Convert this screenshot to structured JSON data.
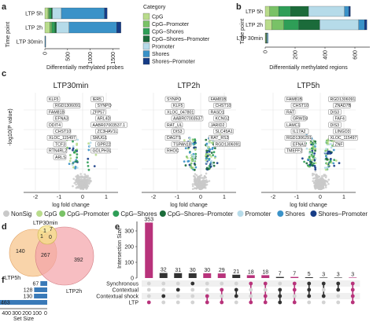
{
  "panels": {
    "a": "a",
    "b": "b",
    "c": "c",
    "d": "d",
    "e": "e",
    "f": "f"
  },
  "colors": {
    "NonSig": "#c9c9c9",
    "CpG": "#b9dc8c",
    "CpG-Promoter": "#79c267",
    "CpG-Shores": "#2e9e57",
    "CpG-Shores-Promoter": "#1b6b3a",
    "Promoter": "#b6dbe9",
    "Shores": "#3a92c8",
    "Shores-Promoter": "#163c86",
    "LTP30min": "#f6e28a",
    "LTP2h": "#f4a3a8",
    "LTP5h": "#f7c68e",
    "upset": "#b8337b"
  },
  "chart_data": [
    {
      "panel": "a",
      "type": "bar",
      "stacked": true,
      "orientation": "horizontal",
      "categories": [
        "LTP 5h",
        "LTP 2h",
        "LTP 30min"
      ],
      "ylabel": "Time point",
      "xlabel": "Differentially methylated probes",
      "xticks": [
        0,
        500,
        1000,
        1500
      ],
      "xlim": [
        0,
        1650
      ],
      "series": [
        {
          "name": "CpG",
          "values": [
            70,
            110,
            1
          ]
        },
        {
          "name": "CpG-Promoter",
          "values": [
            30,
            45,
            1
          ]
        },
        {
          "name": "CpG-Shores",
          "values": [
            45,
            70,
            1
          ]
        },
        {
          "name": "CpG-Shores-Promoter",
          "values": [
            20,
            30,
            0
          ]
        },
        {
          "name": "Promoter",
          "values": [
            200,
            280,
            1
          ]
        },
        {
          "name": "Shores",
          "values": [
            950,
            1050,
            3
          ]
        },
        {
          "name": "Shores-Promoter",
          "values": [
            60,
            95,
            0
          ]
        }
      ]
    },
    {
      "panel": "b",
      "type": "bar",
      "stacked": true,
      "orientation": "horizontal",
      "categories": [
        "LTP 5h",
        "LTP 2h",
        "LTP 30min"
      ],
      "ylabel": "Time point",
      "xlabel": "Differentially methylated regions",
      "xticks": [
        0,
        200,
        400,
        600
      ],
      "xlim": [
        0,
        700
      ],
      "series": [
        {
          "name": "CpG",
          "values": [
            30,
            45,
            3
          ]
        },
        {
          "name": "CpG-Promoter",
          "values": [
            60,
            80,
            2
          ]
        },
        {
          "name": "CpG-Shores",
          "values": [
            80,
            100,
            3
          ]
        },
        {
          "name": "CpG-Shores-Promoter",
          "values": [
            120,
            140,
            2
          ]
        },
        {
          "name": "Promoter",
          "values": [
            240,
            260,
            5
          ]
        },
        {
          "name": "Shores",
          "values": [
            30,
            40,
            1
          ]
        },
        {
          "name": "Shores-Promoter",
          "values": [
            10,
            15,
            0
          ]
        }
      ]
    },
    {
      "panel": "c",
      "type": "scatter",
      "xlabel": "log fold change",
      "ylabel": "-log10(P value)",
      "xticks": [
        -2,
        -1,
        0,
        1
      ],
      "xlim": [
        -2.5,
        1.5
      ],
      "facets": [
        {
          "title": "LTP30min",
          "labels": [
            "KLF5",
            "IER5",
            "RGD1306091",
            "SYNPO",
            "FAM81B",
            "ZFP57",
            "EFNA3",
            "ARL4D",
            "DDIT4",
            "AABR07003537.1",
            "CHST10",
            "ZC3HAV1L",
            "XLOC_115497",
            "SMUG1",
            "TCF3",
            "GPR22",
            "RTN4RL2",
            "GOLPH3L",
            "ARLS"
          ]
        },
        {
          "title": "LTP2h",
          "labels": [
            "SYNPO",
            "FAM81B",
            "KLF5",
            "CHST10",
            "XLOC_047801",
            "RASD1",
            "AABR07003537",
            "KCNG2",
            "RAT_UL",
            "JARID2",
            "DIS3",
            "SLC45A1",
            "DAGTS",
            "RAT_RS3",
            "TSPAN18",
            "RGD1306091",
            "RHOC"
          ]
        },
        {
          "title": "LTP5h",
          "labels": [
            "FAM81B",
            "RGD1306091",
            "CHST10",
            "ZNAD7B",
            "RAT",
            "DIS3",
            "GRWD3",
            "FAF4",
            "LAMC1",
            "DIS3",
            "IL17A2",
            "LINGO3",
            "RGD1306291",
            "XLOC_115497",
            "EFNA1",
            "ZNF",
            "TMEFF2"
          ]
        }
      ]
    },
    {
      "panel": "d",
      "type": "venn",
      "sets": [
        "LTP30min",
        "LTP5h",
        "LTP2h"
      ],
      "regions": {
        "LTP30min_only": 1,
        "LTP30min_LTP5h": 1,
        "LTP30min_LTP2h": 7,
        "all": 0,
        "LTP5h_only": 140,
        "LTP5h_LTP2h": 267,
        "LTP2h_only": 392
      }
    },
    {
      "panel": "e",
      "type": "bar",
      "ylabel": "Intersection Size",
      "yticks": [
        0,
        100,
        200,
        300
      ],
      "ylim": [
        0,
        360
      ],
      "sets": [
        "Synchronous",
        "Contextual",
        "Contextual shock",
        "LTP"
      ],
      "values": [
        353,
        32,
        31,
        30,
        30,
        29,
        21,
        18,
        18,
        7,
        7,
        5,
        3,
        3,
        3
      ],
      "highlight": [
        true,
        false,
        false,
        false,
        true,
        true,
        false,
        true,
        true,
        false,
        true,
        false,
        false,
        false,
        true
      ],
      "membership": [
        [
          3
        ],
        [
          2
        ],
        [
          1
        ],
        [
          0
        ],
        [
          2,
          3
        ],
        [
          1,
          3
        ],
        [
          1,
          2
        ],
        [
          0,
          3
        ],
        [
          0,
          2,
          3
        ],
        [
          1,
          2,
          3
        ],
        [
          0,
          1,
          3
        ],
        [
          0,
          1,
          2
        ],
        [
          0,
          2
        ],
        [
          0,
          1
        ],
        [
          0,
          1,
          2,
          3
        ]
      ]
    },
    {
      "panel": "f",
      "type": "bar",
      "orientation": "horizontal",
      "xlabel": "Set Size",
      "xticks": [
        400,
        300,
        200,
        100,
        0
      ],
      "categories": [
        "Synchronous",
        "Contextual",
        "Contextual shock",
        "LTP"
      ],
      "values": [
        67,
        128,
        130,
        463
      ]
    }
  ],
  "legend": {
    "title": "Category",
    "items": [
      "CpG",
      "CpG–Promoter",
      "CpG–Shores",
      "CpG–Shores–Promoter",
      "Promoter",
      "Shores",
      "Shores–Promoter"
    ]
  },
  "bottom_legend": {
    "items": [
      "NonSig",
      "CpG",
      "CpG–Promoter",
      "CpG–Shores",
      "CpG–Shores–Promoter",
      "Promoter",
      "Shores",
      "Shores–Promoter"
    ]
  }
}
